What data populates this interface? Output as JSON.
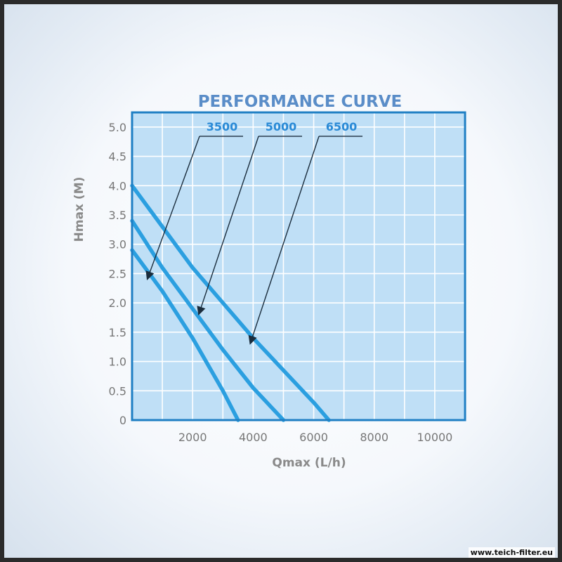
{
  "chart_data": {
    "type": "line",
    "title": "PERFORMANCE CURVE",
    "xlabel": "Qmax (L/h)",
    "ylabel": "Hmax (M)",
    "xlim": [
      0,
      11000
    ],
    "ylim": [
      0,
      5.0
    ],
    "x_ticks": [
      "2000",
      "4000",
      "6000",
      "8000",
      "10000"
    ],
    "x_tick_values": [
      2000,
      4000,
      6000,
      8000,
      10000
    ],
    "y_ticks": [
      "0",
      "0.5",
      "1.0",
      "1.5",
      "2.0",
      "2.5",
      "3.0",
      "3.5",
      "4.0",
      "4.5",
      "5.0"
    ],
    "y_tick_values": [
      0,
      0.5,
      1.0,
      1.5,
      2.0,
      2.5,
      3.0,
      3.5,
      4.0,
      4.5,
      5.0
    ],
    "grid": true,
    "series": [
      {
        "name": "3500",
        "x": [
          0,
          1000,
          2000,
          3000,
          3500
        ],
        "y": [
          2.9,
          2.2,
          1.4,
          0.5,
          0
        ]
      },
      {
        "name": "5000",
        "x": [
          0,
          1000,
          2000,
          3000,
          4000,
          5000
        ],
        "y": [
          3.4,
          2.6,
          1.9,
          1.2,
          0.55,
          0
        ]
      },
      {
        "name": "6500",
        "x": [
          0,
          1000,
          2000,
          3000,
          4000,
          5000,
          6000,
          6500
        ],
        "y": [
          4.0,
          3.3,
          2.6,
          2.0,
          1.4,
          0.85,
          0.3,
          0
        ]
      }
    ],
    "annotation_points": [
      {
        "series": "3500",
        "x": 500,
        "y": 2.4
      },
      {
        "series": "5000",
        "x": 2200,
        "y": 1.8
      },
      {
        "series": "6500",
        "x": 3900,
        "y": 1.3
      }
    ]
  },
  "watermark": "www.teich-filter.eu",
  "colors": {
    "plot_bg": "#bfdff6",
    "grid": "#ffffff",
    "frame": "#1f7fc4",
    "curve": "#2b9fe0",
    "title": "#5a8dc8",
    "label_blue": "#2a8ad6",
    "tick_text": "#777777",
    "axis_title": "#8a8a8a"
  }
}
